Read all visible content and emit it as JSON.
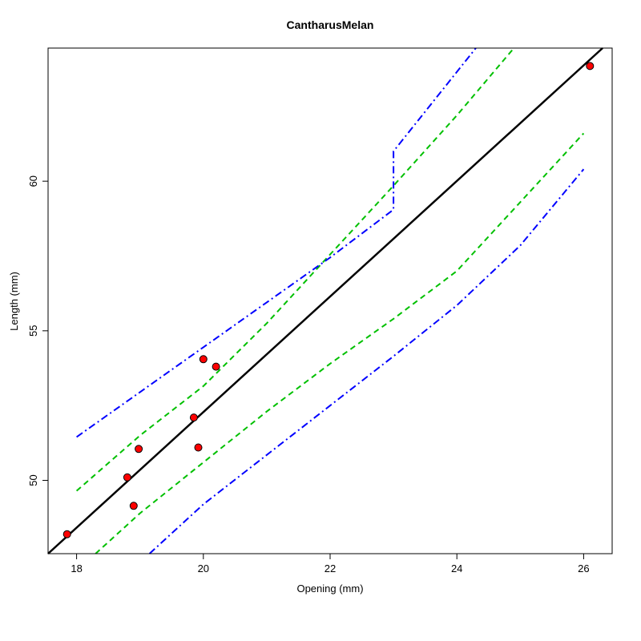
{
  "chart_data": {
    "type": "scatter",
    "title": "CantharusMelan",
    "xlabel": "Opening (mm)",
    "ylabel": "Length (mm)",
    "xlim": [
      17.55,
      26.45
    ],
    "ylim": [
      47.55,
      64.45
    ],
    "xticks": [
      18,
      20,
      22,
      24,
      26
    ],
    "yticks": [
      50,
      55,
      60
    ],
    "points": [
      {
        "x": 17.85,
        "y": 48.2
      },
      {
        "x": 18.8,
        "y": 50.1
      },
      {
        "x": 18.9,
        "y": 49.15
      },
      {
        "x": 18.98,
        "y": 51.05
      },
      {
        "x": 19.85,
        "y": 52.1
      },
      {
        "x": 19.92,
        "y": 51.1
      },
      {
        "x": 20.0,
        "y": 54.05
      },
      {
        "x": 20.2,
        "y": 53.8
      },
      {
        "x": 26.1,
        "y": 63.85
      }
    ],
    "fit_line": {
      "x": [
        17.55,
        26.3
      ],
      "y": [
        47.55,
        64.45
      ]
    },
    "confidence_band": {
      "upper": {
        "x": [
          18.0,
          19.0,
          20.0,
          21.0,
          22.0,
          23.0,
          24.0,
          24.9
        ],
        "y": [
          49.65,
          51.5,
          53.15,
          55.25,
          57.55,
          59.85,
          62.2,
          64.45
        ]
      },
      "lower": {
        "x": [
          18.3,
          19.0,
          20.0,
          21.0,
          22.0,
          23.0,
          24.0,
          25.0,
          26.0
        ],
        "y": [
          47.55,
          48.9,
          50.6,
          52.3,
          53.9,
          55.4,
          57.0,
          59.3,
          61.6
        ]
      }
    },
    "prediction_band": {
      "upper": {
        "x": [
          18.0,
          19.0,
          20.0,
          21.0,
          22.0,
          23.0,
          23.0,
          24.3
        ],
        "y": [
          51.45,
          52.95,
          54.45,
          55.95,
          57.45,
          59.05,
          61.0,
          64.45
        ]
      },
      "lower": {
        "x": [
          19.15,
          20.0,
          21.0,
          22.0,
          23.0,
          24.0,
          25.0,
          26.0
        ],
        "y": [
          47.55,
          49.2,
          50.85,
          52.5,
          54.15,
          55.85,
          57.85,
          60.4
        ]
      }
    },
    "colors": {
      "points_fill": "#ff0000",
      "points_stroke": "#000000",
      "fit_line": "#000000",
      "confidence_band": "#00c000",
      "prediction_band": "#0000ff"
    }
  }
}
